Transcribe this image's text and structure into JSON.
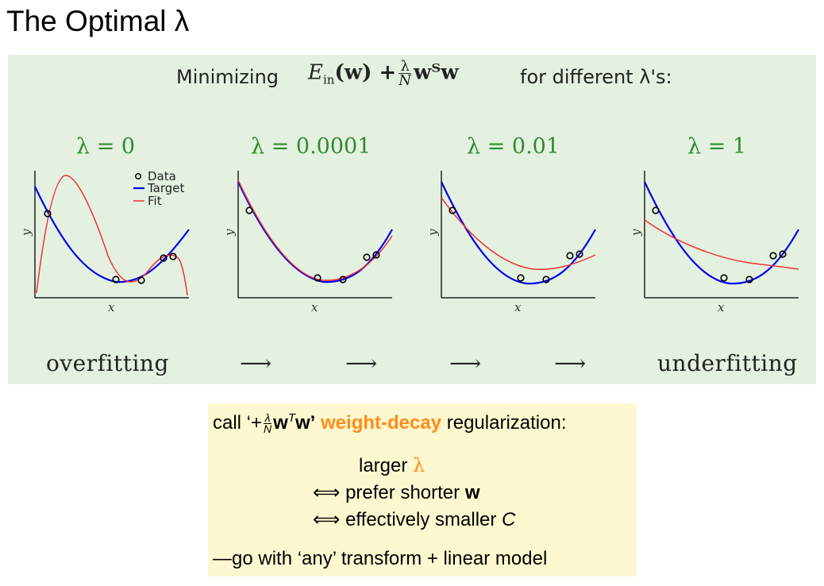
{
  "slide_title": "The Optimal λ",
  "header": {
    "prefix": "Minimizing",
    "formula_E": "E",
    "formula_sub": "in",
    "formula_w": "(w) +",
    "frac_num": "λ",
    "frac_den": "N",
    "formula_tail": "wᵀw",
    "suffix": "for different λ's:"
  },
  "lambda_labels": [
    "λ = 0",
    "λ = 0.0001",
    "λ = 0.01",
    "λ = 1"
  ],
  "legend": {
    "data": "Data",
    "target": "Target",
    "fit": "Fit"
  },
  "axis_labels": {
    "x": "x",
    "y": "y"
  },
  "bottom": {
    "left": "overfitting",
    "right": "underfitting",
    "arrow": "⟶"
  },
  "box": {
    "line1_pre": "call ‘+",
    "frac_num": "λ",
    "frac_den": "N",
    "line1_w": "w",
    "line1_T": "T",
    "line1_w2": "w’",
    "line1_highlight": "weight-decay",
    "line1_post": "regularization:",
    "line2": "larger",
    "line2_lambda": "λ",
    "iff": "⟺",
    "line3": "prefer shorter",
    "line3_w": "w",
    "line4": "effectively smaller",
    "line4_C": "C",
    "line5": "—go with ‘any’ transform + linear model"
  },
  "colors": {
    "panel": "#e4f1e1",
    "lambda_green": "#2f8a2f",
    "target": "#0000ee",
    "fit": "#ee3333",
    "highlight": "#ff8c1a",
    "box": "#fdf8cf"
  }
}
